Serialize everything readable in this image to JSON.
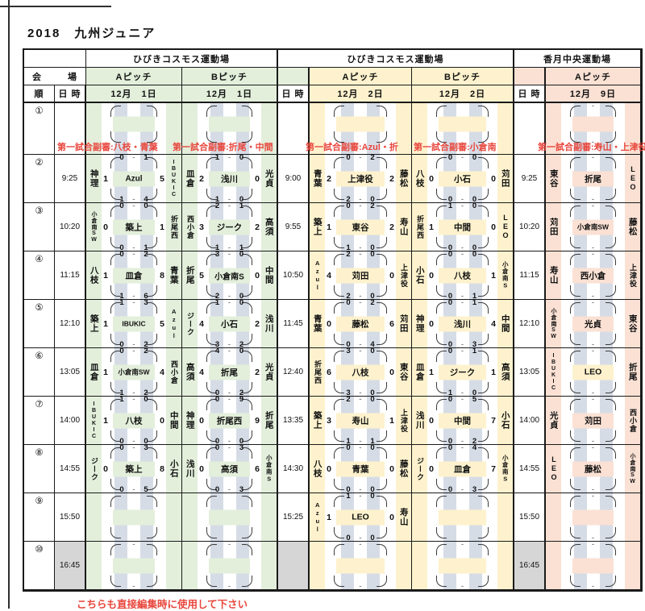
{
  "title": "2018　九州ジュニア",
  "footer_note": "こちらも直接編集時に使用して下さい",
  "colors": {
    "green": "#e3efdb",
    "yellow": "#fdf2cd",
    "salmon": "#fae1d4",
    "stripe": "#d6dce6",
    "gray": "#d6d6d6",
    "red": "#e8463c"
  },
  "header": {
    "corner_left": "会",
    "corner_right": "場",
    "order": "順",
    "datetime": "日 時",
    "venues": [
      "ひびきコスモス運動場",
      "ひびきコスモス運動場",
      "香月中央運動場"
    ],
    "pitches": [
      "Aピッチ",
      "Bピッチ",
      "Aピッチ",
      "Bピッチ",
      "Aピッチ"
    ],
    "dates": [
      "12月　1日",
      "12月　1日",
      "12月　2日",
      "12月　2日",
      "12月　9日"
    ]
  },
  "referee_notes": [
    "第一試合副審:八枝・青葉",
    "第一試合副審:折尾・中間",
    "第一試合副審:Azul・折",
    "第一試合副審:小倉南",
    "第一試合副審:寿山・上津役"
  ],
  "rows": [
    {
      "no": "①",
      "times": [
        "",
        "",
        ""
      ]
    },
    {
      "no": "②",
      "times": [
        "9:25",
        "9:00",
        "9:25"
      ]
    },
    {
      "no": "③",
      "times": [
        "10:20",
        "9:55",
        "10:20"
      ]
    },
    {
      "no": "④",
      "times": [
        "11:15",
        "10:50",
        "11:15"
      ]
    },
    {
      "no": "⑤",
      "times": [
        "12:10",
        "11:45",
        "12:10"
      ]
    },
    {
      "no": "⑥",
      "times": [
        "13:05",
        "12:40",
        "13:05"
      ]
    },
    {
      "no": "⑦",
      "times": [
        "14:00",
        "13:35",
        "14:00"
      ]
    },
    {
      "no": "⑧",
      "times": [
        "14:55",
        "14:30",
        "14:55"
      ]
    },
    {
      "no": "⑨",
      "times": [
        "15:50",
        "15:25",
        "15:50"
      ]
    },
    {
      "no": "⑩",
      "times": [
        "16:45",
        "",
        "16:45"
      ],
      "gray": true
    }
  ],
  "matches": {
    "g1a": [
      {},
      {
        "l": "神理",
        "ls": "1",
        "th": [
          "0",
          "1"
        ],
        "name": "Azul",
        "bh": [
          "1",
          "4"
        ],
        "rs": "5",
        "r": "IBUKIC"
      },
      {
        "l": "小倉南SW",
        "ls": "0",
        "th": [
          "0",
          "0"
        ],
        "name": "築上",
        "bh": [
          "0",
          "1"
        ],
        "rs": "1",
        "r": "折尾西"
      },
      {
        "l": "八枝",
        "ls": "1",
        "th": [
          "0",
          "2"
        ],
        "name": "皿倉",
        "bh": [
          "1",
          "6"
        ],
        "rs": "8",
        "r": "青葉"
      },
      {
        "l": "築上",
        "ls": "1",
        "th": [
          "1",
          "3"
        ],
        "name": "IBUKIC",
        "bh": [
          "0",
          "2"
        ],
        "rs": "5",
        "r": "Azul"
      },
      {
        "l": "皿倉",
        "ls": "1",
        "th": [
          "0",
          "2"
        ],
        "name": "小倉南SW",
        "bh": [
          "1",
          "2"
        ],
        "rs": "4",
        "r": "西小倉"
      },
      {
        "l": "IBUKIC",
        "ls": "1",
        "th": [
          "1",
          "0"
        ],
        "name": "八枝",
        "bh": [
          "0",
          "0"
        ],
        "rs": "0",
        "r": "中間"
      },
      {
        "l": "ジーク",
        "ls": "0",
        "th": [
          "0",
          "3"
        ],
        "name": "築上",
        "bh": [
          "0",
          "5"
        ],
        "rs": "8",
        "r": "小石"
      },
      {},
      {
        "th": [
          "",
          ""
        ],
        "bh": [
          "",
          ""
        ]
      }
    ],
    "g1b": [
      {},
      {
        "l": "皿倉",
        "ls": "2",
        "th": [
          "1",
          "0"
        ],
        "name": "浅川",
        "bh": [
          "1",
          "0"
        ],
        "rs": "0",
        "r": "光貞"
      },
      {
        "l": "西小倉",
        "ls": "3",
        "th": [
          "2",
          "1"
        ],
        "name": "ジーク",
        "bh": [
          "1",
          "1"
        ],
        "rs": "2",
        "r": "高須"
      },
      {
        "l": "折尾",
        "ls": "5",
        "th": [
          "3",
          "0"
        ],
        "name": "小倉南S",
        "bh": [
          "2",
          "0"
        ],
        "rs": "0",
        "r": "中間"
      },
      {
        "l": "ジーク",
        "ls": "4",
        "th": [
          "1",
          "0"
        ],
        "name": "小石",
        "bh": [
          "3",
          "2"
        ],
        "rs": "2",
        "r": "浅川"
      },
      {
        "l": "高須",
        "ls": "4",
        "th": [
          "4",
          "0"
        ],
        "name": "折尾",
        "bh": [
          "0",
          "2"
        ],
        "rs": "2",
        "r": "光貞"
      },
      {
        "l": "神理",
        "ls": "0",
        "th": [
          "0",
          "9"
        ],
        "name": "折尾西",
        "bh": [
          "0",
          "0"
        ],
        "rs": "9",
        "r": "折尾"
      },
      {
        "l": "浅川",
        "ls": "0",
        "th": [
          "0",
          "3"
        ],
        "name": "高須",
        "bh": [
          "0",
          "3"
        ],
        "rs": "6",
        "r": "小倉南S"
      },
      {},
      {
        "th": [
          "",
          ""
        ],
        "bh": [
          "",
          ""
        ]
      }
    ],
    "g2a": [
      {},
      {
        "l": "青葉",
        "ls": "2",
        "th": [
          "0",
          "2"
        ],
        "name": "上津役",
        "bh": [
          "2",
          "0"
        ],
        "rs": "2",
        "r": "藤松"
      },
      {
        "l": "築上",
        "ls": "1",
        "th": [
          "0",
          "2"
        ],
        "name": "東谷",
        "bh": [
          "1",
          "0"
        ],
        "rs": "2",
        "r": "寿山"
      },
      {
        "l": "Azul",
        "ls": "4",
        "th": [
          "2",
          "0"
        ],
        "name": "苅田",
        "bh": [
          "2",
          "0"
        ],
        "rs": "0",
        "r": "上津役"
      },
      {
        "l": "青葉",
        "ls": "0",
        "th": [
          "0",
          "2"
        ],
        "name": "藤松",
        "bh": [
          "0",
          "4"
        ],
        "rs": "6",
        "r": "苅田"
      },
      {
        "l": "折尾西",
        "ls": "6",
        "th": [
          "3",
          "0"
        ],
        "name": "八枝",
        "bh": [
          "3",
          "0"
        ],
        "rs": "0",
        "r": "東谷"
      },
      {
        "l": "築上",
        "ls": "3",
        "th": [
          "2",
          "0"
        ],
        "name": "寿山",
        "bh": [
          "1",
          "1"
        ],
        "rs": "1",
        "r": "上津役"
      },
      {
        "l": "八枝",
        "ls": "0",
        "th": [
          "0",
          "0"
        ],
        "name": "青葉",
        "bh": [
          "0",
          "0"
        ],
        "rs": "0",
        "r": "藤松"
      },
      {
        "l": "Azul",
        "ls": "1",
        "th": [
          "1",
          "0"
        ],
        "name": "LEO",
        "bh": [
          "0",
          "0"
        ],
        "rs": "0",
        "r": "寿山"
      },
      {
        "th": [
          "",
          ""
        ],
        "bh": [
          "",
          ""
        ]
      }
    ],
    "g2b": [
      {},
      {
        "l": "八枝",
        "ls": "0",
        "th": [
          "0",
          "0"
        ],
        "name": "小石",
        "bh": [
          "0",
          "0"
        ],
        "rs": "0",
        "r": "苅田"
      },
      {
        "l": "折尾西",
        "ls": "1",
        "th": [
          "1",
          "0"
        ],
        "name": "中間",
        "bh": [
          "0",
          "0"
        ],
        "rs": "0",
        "r": "LEO"
      },
      {
        "l": "小石",
        "ls": "0",
        "th": [
          "0",
          "0"
        ],
        "name": "八枝",
        "bh": [
          "0",
          "1"
        ],
        "rs": "1",
        "r": "小倉南S"
      },
      {
        "l": "神理",
        "ls": "0",
        "th": [
          "0",
          "1"
        ],
        "name": "浅川",
        "bh": [
          "0",
          "3"
        ],
        "rs": "4",
        "r": "中間"
      },
      {
        "l": "皿倉",
        "ls": "1",
        "th": [
          "0",
          "1"
        ],
        "name": "ジーク",
        "bh": [
          "1",
          "0"
        ],
        "rs": "1",
        "r": "高須"
      },
      {
        "l": "浅川",
        "ls": "0",
        "th": [
          "0",
          "5"
        ],
        "name": "中間",
        "bh": [
          "0",
          "2"
        ],
        "rs": "7",
        "r": "小石"
      },
      {
        "l": "ジーク",
        "ls": "0",
        "th": [
          "0",
          "4"
        ],
        "name": "皿倉",
        "bh": [
          "0",
          "3"
        ],
        "rs": "7",
        "r": "小倉南S"
      },
      {},
      {
        "th": [
          "",
          ""
        ],
        "bh": [
          "",
          ""
        ]
      }
    ],
    "g3a": [
      {
        "th": [
          "",
          ""
        ],
        "bh": [
          "",
          ""
        ]
      },
      {
        "l": "東谷",
        "th": [
          "",
          ""
        ],
        "name": "折尾",
        "bh": [
          "",
          ""
        ],
        "r": "LEO"
      },
      {
        "l": "苅田",
        "th": [
          "",
          ""
        ],
        "name": "小倉南SW",
        "bh": [
          "",
          ""
        ],
        "r": "藤松"
      },
      {
        "l": "寿山",
        "th": [
          "",
          ""
        ],
        "name": "西小倉",
        "bh": [
          "",
          ""
        ],
        "r": "上津役"
      },
      {
        "l": "小倉南SW",
        "th": [
          "",
          ""
        ],
        "name": "光貞",
        "bh": [
          "",
          ""
        ],
        "r": "東谷"
      },
      {
        "l": "IBUKIC",
        "th": [
          "",
          ""
        ],
        "name": "LEO",
        "bh": [
          "",
          ""
        ],
        "r": "折尾",
        "box": "yellow"
      },
      {
        "l": "光貞",
        "th": [
          "",
          ""
        ],
        "name": "苅田",
        "bh": [
          "",
          ""
        ],
        "r": "西小倉"
      },
      {
        "l": "LEO",
        "th": [
          "",
          ""
        ],
        "name": "藤松",
        "bh": [
          "",
          ""
        ],
        "r": "小倉南SW"
      },
      {
        "th": [
          "",
          ""
        ],
        "bh": [
          "",
          ""
        ]
      },
      {
        "th": [
          "",
          ""
        ],
        "bh": [
          "",
          ""
        ]
      }
    ]
  }
}
